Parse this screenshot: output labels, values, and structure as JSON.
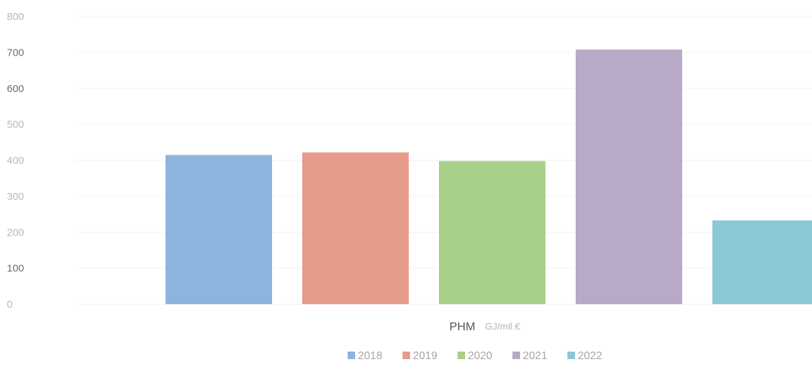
{
  "chart_data": {
    "type": "bar",
    "categories": [
      "PHM"
    ],
    "xlabel": "PHM",
    "xlabel_unit": "GJ/mil.€",
    "ylim": [
      0,
      800
    ],
    "yticks": [
      "0",
      "100",
      "200",
      "300",
      "400",
      "500",
      "600",
      "700",
      "800"
    ],
    "grid": true,
    "legend_position": "bottom",
    "series": [
      {
        "name": "2018",
        "values": [
          415
        ],
        "color": "#8db4dd"
      },
      {
        "name": "2019",
        "values": [
          422
        ],
        "color": "#e69b8b"
      },
      {
        "name": "2020",
        "values": [
          398
        ],
        "color": "#a8d08a"
      },
      {
        "name": "2021",
        "values": [
          708
        ],
        "color": "#b8a9c6"
      },
      {
        "name": "2022",
        "values": [
          233
        ],
        "color": "#8dc8d6"
      }
    ]
  }
}
